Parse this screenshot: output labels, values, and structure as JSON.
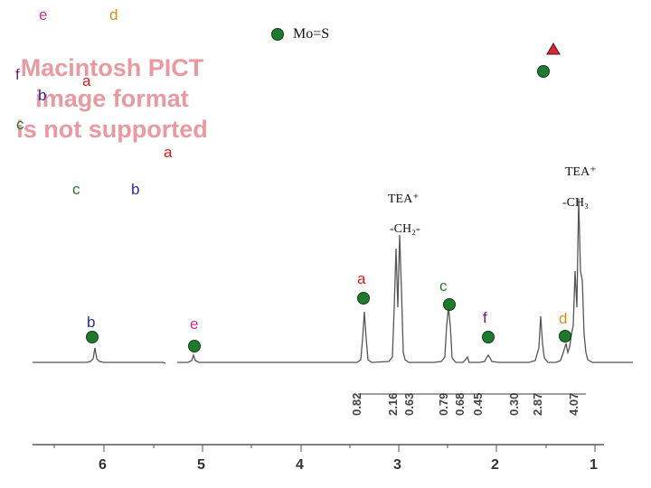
{
  "placeholder_text": [
    "Macintosh PICT",
    "image format",
    "is not supported"
  ],
  "top_labels": {
    "e": "e",
    "d": "d",
    "f": "f",
    "a1": "a",
    "b1": "b",
    "c1": "c",
    "a2": "a",
    "c2": "c",
    "b2": "b"
  },
  "legend": {
    "label": "Mo=S"
  },
  "annotations": {
    "tea_right": "TEA⁺",
    "ch3": "-CH₃",
    "tea_mid": "TEA⁺",
    "ch2": "-CH₂-"
  },
  "peak_labels": {
    "a": "a",
    "c": "c",
    "b": "b",
    "e": "e",
    "f": "f",
    "d": "d"
  },
  "integrals": [
    "0.82",
    "2.16",
    "0.63",
    "0.79",
    "0.68",
    "0.45",
    "0.30",
    "2.87",
    "4.07"
  ],
  "axis_ticks": [
    "6",
    "5",
    "4",
    "3",
    "2",
    "1"
  ],
  "colors": {
    "e": "#cc3399",
    "d": "#d98e1a",
    "a": "#cc1f1f",
    "b": "#2a2aa8",
    "c": "#1f7a2e",
    "f": "#7a1f6e",
    "marker": "#1f7a2e",
    "triangle": "#d12a3a"
  }
}
